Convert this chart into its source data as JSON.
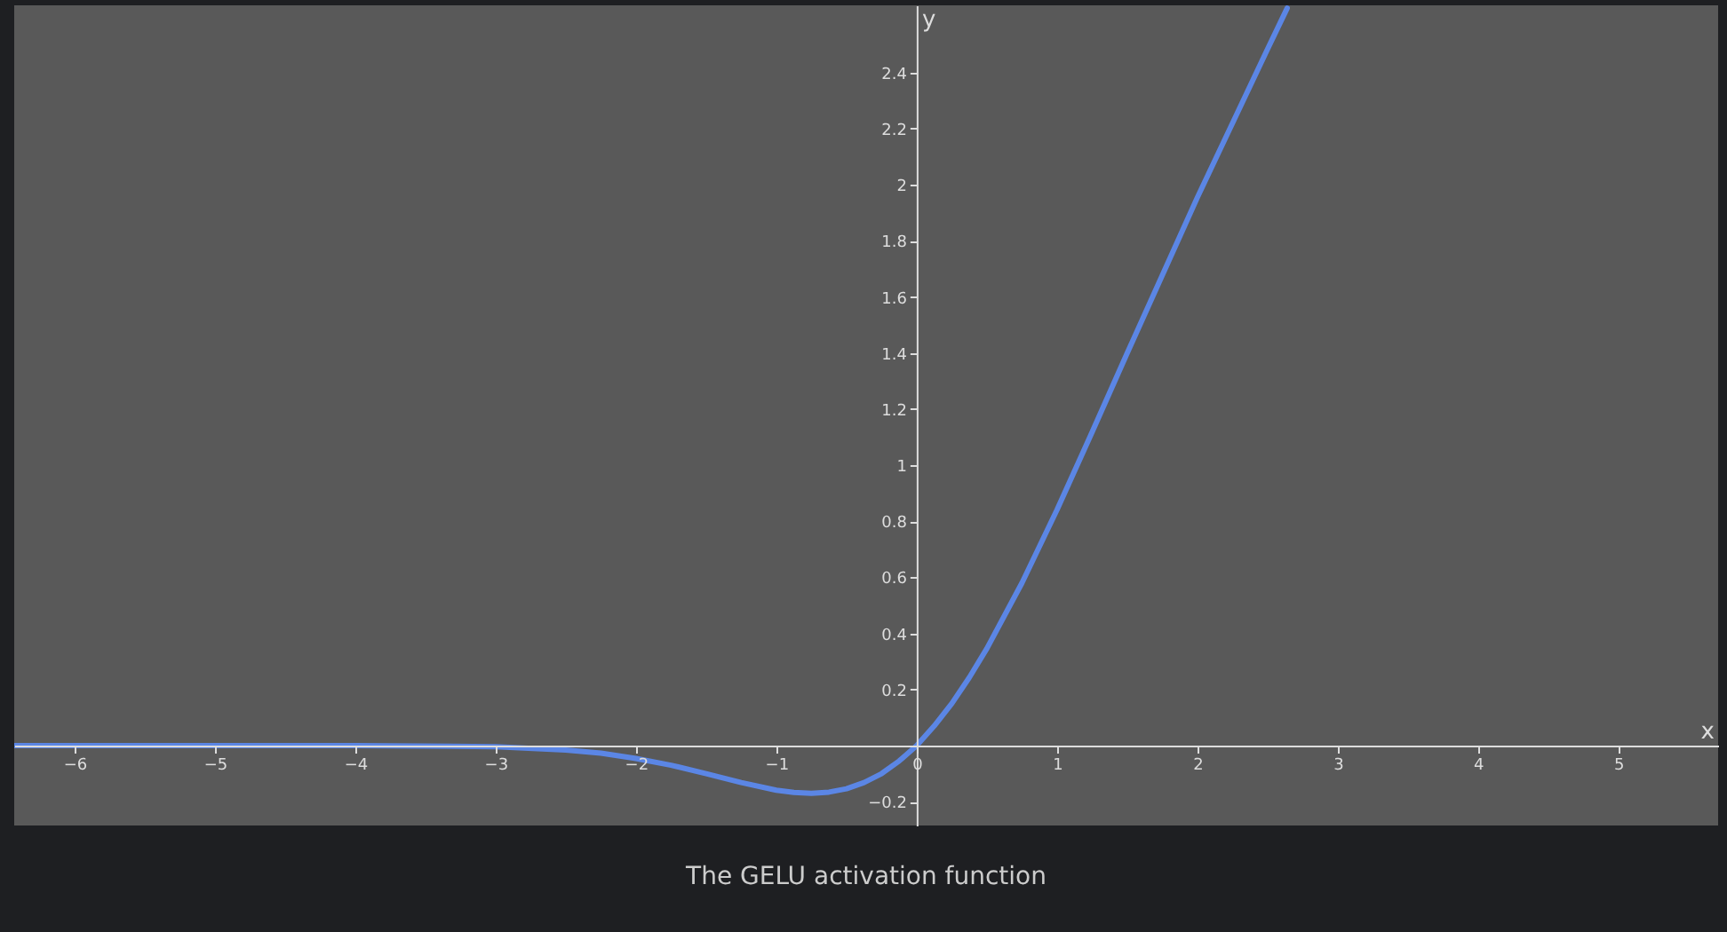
{
  "chart_data": {
    "type": "line",
    "xlabel": "x",
    "ylabel": "y",
    "annotations": [
      "The GELU activation function"
    ],
    "x": [
      -6.43,
      -5,
      -4,
      -3,
      -2.5,
      -2.25,
      -2,
      -1.75,
      -1.5,
      -1.25,
      -1,
      -0.875,
      -0.75,
      -0.625,
      -0.5,
      -0.375,
      -0.25,
      -0.125,
      0,
      0.125,
      0.25,
      0.375,
      0.5,
      0.75,
      1,
      1.25,
      1.5,
      2,
      2.5,
      2.64
    ],
    "series": [
      {
        "color": "#5b86e5",
        "values": [
          0,
          0,
          0,
          -0.004,
          -0.016,
          -0.027,
          -0.046,
          -0.07,
          -0.1,
          -0.132,
          -0.159,
          -0.167,
          -0.17,
          -0.166,
          -0.154,
          -0.132,
          -0.1,
          -0.055,
          0,
          0.07,
          0.15,
          0.243,
          0.346,
          0.58,
          0.841,
          1.118,
          1.4,
          1.955,
          2.484,
          2.63
        ]
      }
    ],
    "xlim": [
      -6.43,
      5.71
    ],
    "ylim": [
      -0.285,
      2.64
    ],
    "xticks": [
      -6,
      -5,
      -4,
      -3,
      -2,
      -1,
      0,
      1,
      2,
      3,
      4,
      5
    ],
    "yticks": [
      -0.2,
      0.2,
      0.4,
      0.6,
      0.8,
      1,
      1.2,
      1.4,
      1.6,
      1.8,
      2,
      2.2,
      2.4
    ],
    "grid": false,
    "marker": "none",
    "line_style": "solid"
  }
}
